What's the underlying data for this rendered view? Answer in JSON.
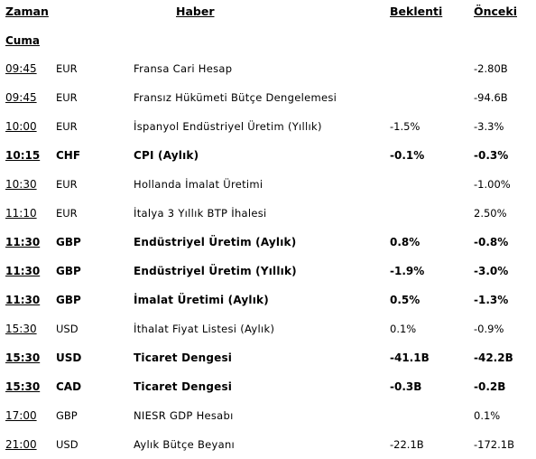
{
  "header": {
    "zaman": "Zaman",
    "haber": "Haber",
    "beklenti": "Beklenti",
    "onceki": "Önceki"
  },
  "day": "Cuma",
  "rows": [
    {
      "time": "09:45",
      "currency": "EUR",
      "event": "Fransa Cari Hesap",
      "expected": "",
      "previous": "-2.80B",
      "bold": false
    },
    {
      "time": "09:45",
      "currency": "EUR",
      "event": "Fransız Hükümeti Bütçe Dengelemesi",
      "expected": "",
      "previous": "-94.6B",
      "bold": false
    },
    {
      "time": "10:00",
      "currency": "EUR",
      "event": "İspanyol Endüstriyel Üretim (Yıllık)",
      "expected": "-1.5%",
      "previous": "-3.3%",
      "bold": false
    },
    {
      "time": "10:15",
      "currency": "CHF",
      "event": "CPI (Aylık)",
      "expected": "-0.1%",
      "previous": "-0.3%",
      "bold": true
    },
    {
      "time": "10:30",
      "currency": "EUR",
      "event": "Hollanda İmalat Üretimi",
      "expected": "",
      "previous": "-1.00%",
      "bold": false
    },
    {
      "time": "11:10",
      "currency": "EUR",
      "event": "İtalya 3 Yıllık BTP İhalesi",
      "expected": "",
      "previous": "2.50%",
      "bold": false
    },
    {
      "time": "11:30",
      "currency": "GBP",
      "event": "Endüstriyel Üretim (Aylık)",
      "expected": "0.8%",
      "previous": "-0.8%",
      "bold": true
    },
    {
      "time": "11:30",
      "currency": "GBP",
      "event": "Endüstriyel Üretim (Yıllık)",
      "expected": "-1.9%",
      "previous": "-3.0%",
      "bold": true
    },
    {
      "time": "11:30",
      "currency": "GBP",
      "event": "İmalat Üretimi (Aylık)",
      "expected": "0.5%",
      "previous": "-1.3%",
      "bold": true
    },
    {
      "time": "15:30",
      "currency": "USD",
      "event": "İthalat Fiyat Listesi (Aylık)",
      "expected": "0.1%",
      "previous": "-0.9%",
      "bold": false
    },
    {
      "time": "15:30",
      "currency": "USD",
      "event": "Ticaret Dengesi",
      "expected": "-41.1B",
      "previous": "-42.2B",
      "bold": true
    },
    {
      "time": "15:30",
      "currency": "CAD",
      "event": "Ticaret Dengesi",
      "expected": "-0.3B",
      "previous": "-0.2B",
      "bold": true
    },
    {
      "time": "17:00",
      "currency": "GBP",
      "event": "NIESR GDP Hesabı",
      "expected": "",
      "previous": "0.1%",
      "bold": false
    },
    {
      "time": "21:00",
      "currency": "USD",
      "event": "Aylık Bütçe Beyanı",
      "expected": "-22.1B",
      "previous": "-172.1B",
      "bold": false
    }
  ]
}
